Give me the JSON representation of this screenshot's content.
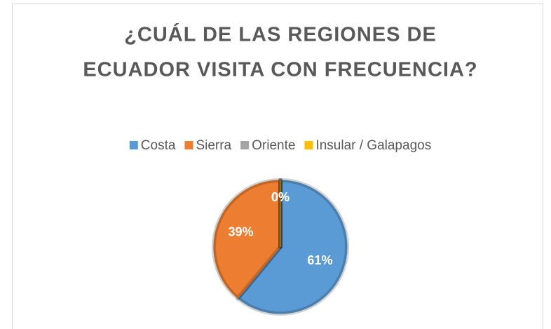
{
  "chart_data": {
    "type": "pie",
    "title": [
      "¿CUÁL DE LAS REGIONES DE",
      "ECUADOR VISITA CON FRECUENCIA?"
    ],
    "categories": [
      "Costa",
      "Sierra",
      "Oriente",
      "Insular / Galapagos"
    ],
    "values": [
      61,
      39,
      0,
      0
    ],
    "value_labels": [
      "61%",
      "39%",
      "0%",
      "0%"
    ],
    "colors": [
      "#5b9bd5",
      "#ed7d31",
      "#a5a5a5",
      "#ffc000"
    ],
    "legend": "top"
  }
}
